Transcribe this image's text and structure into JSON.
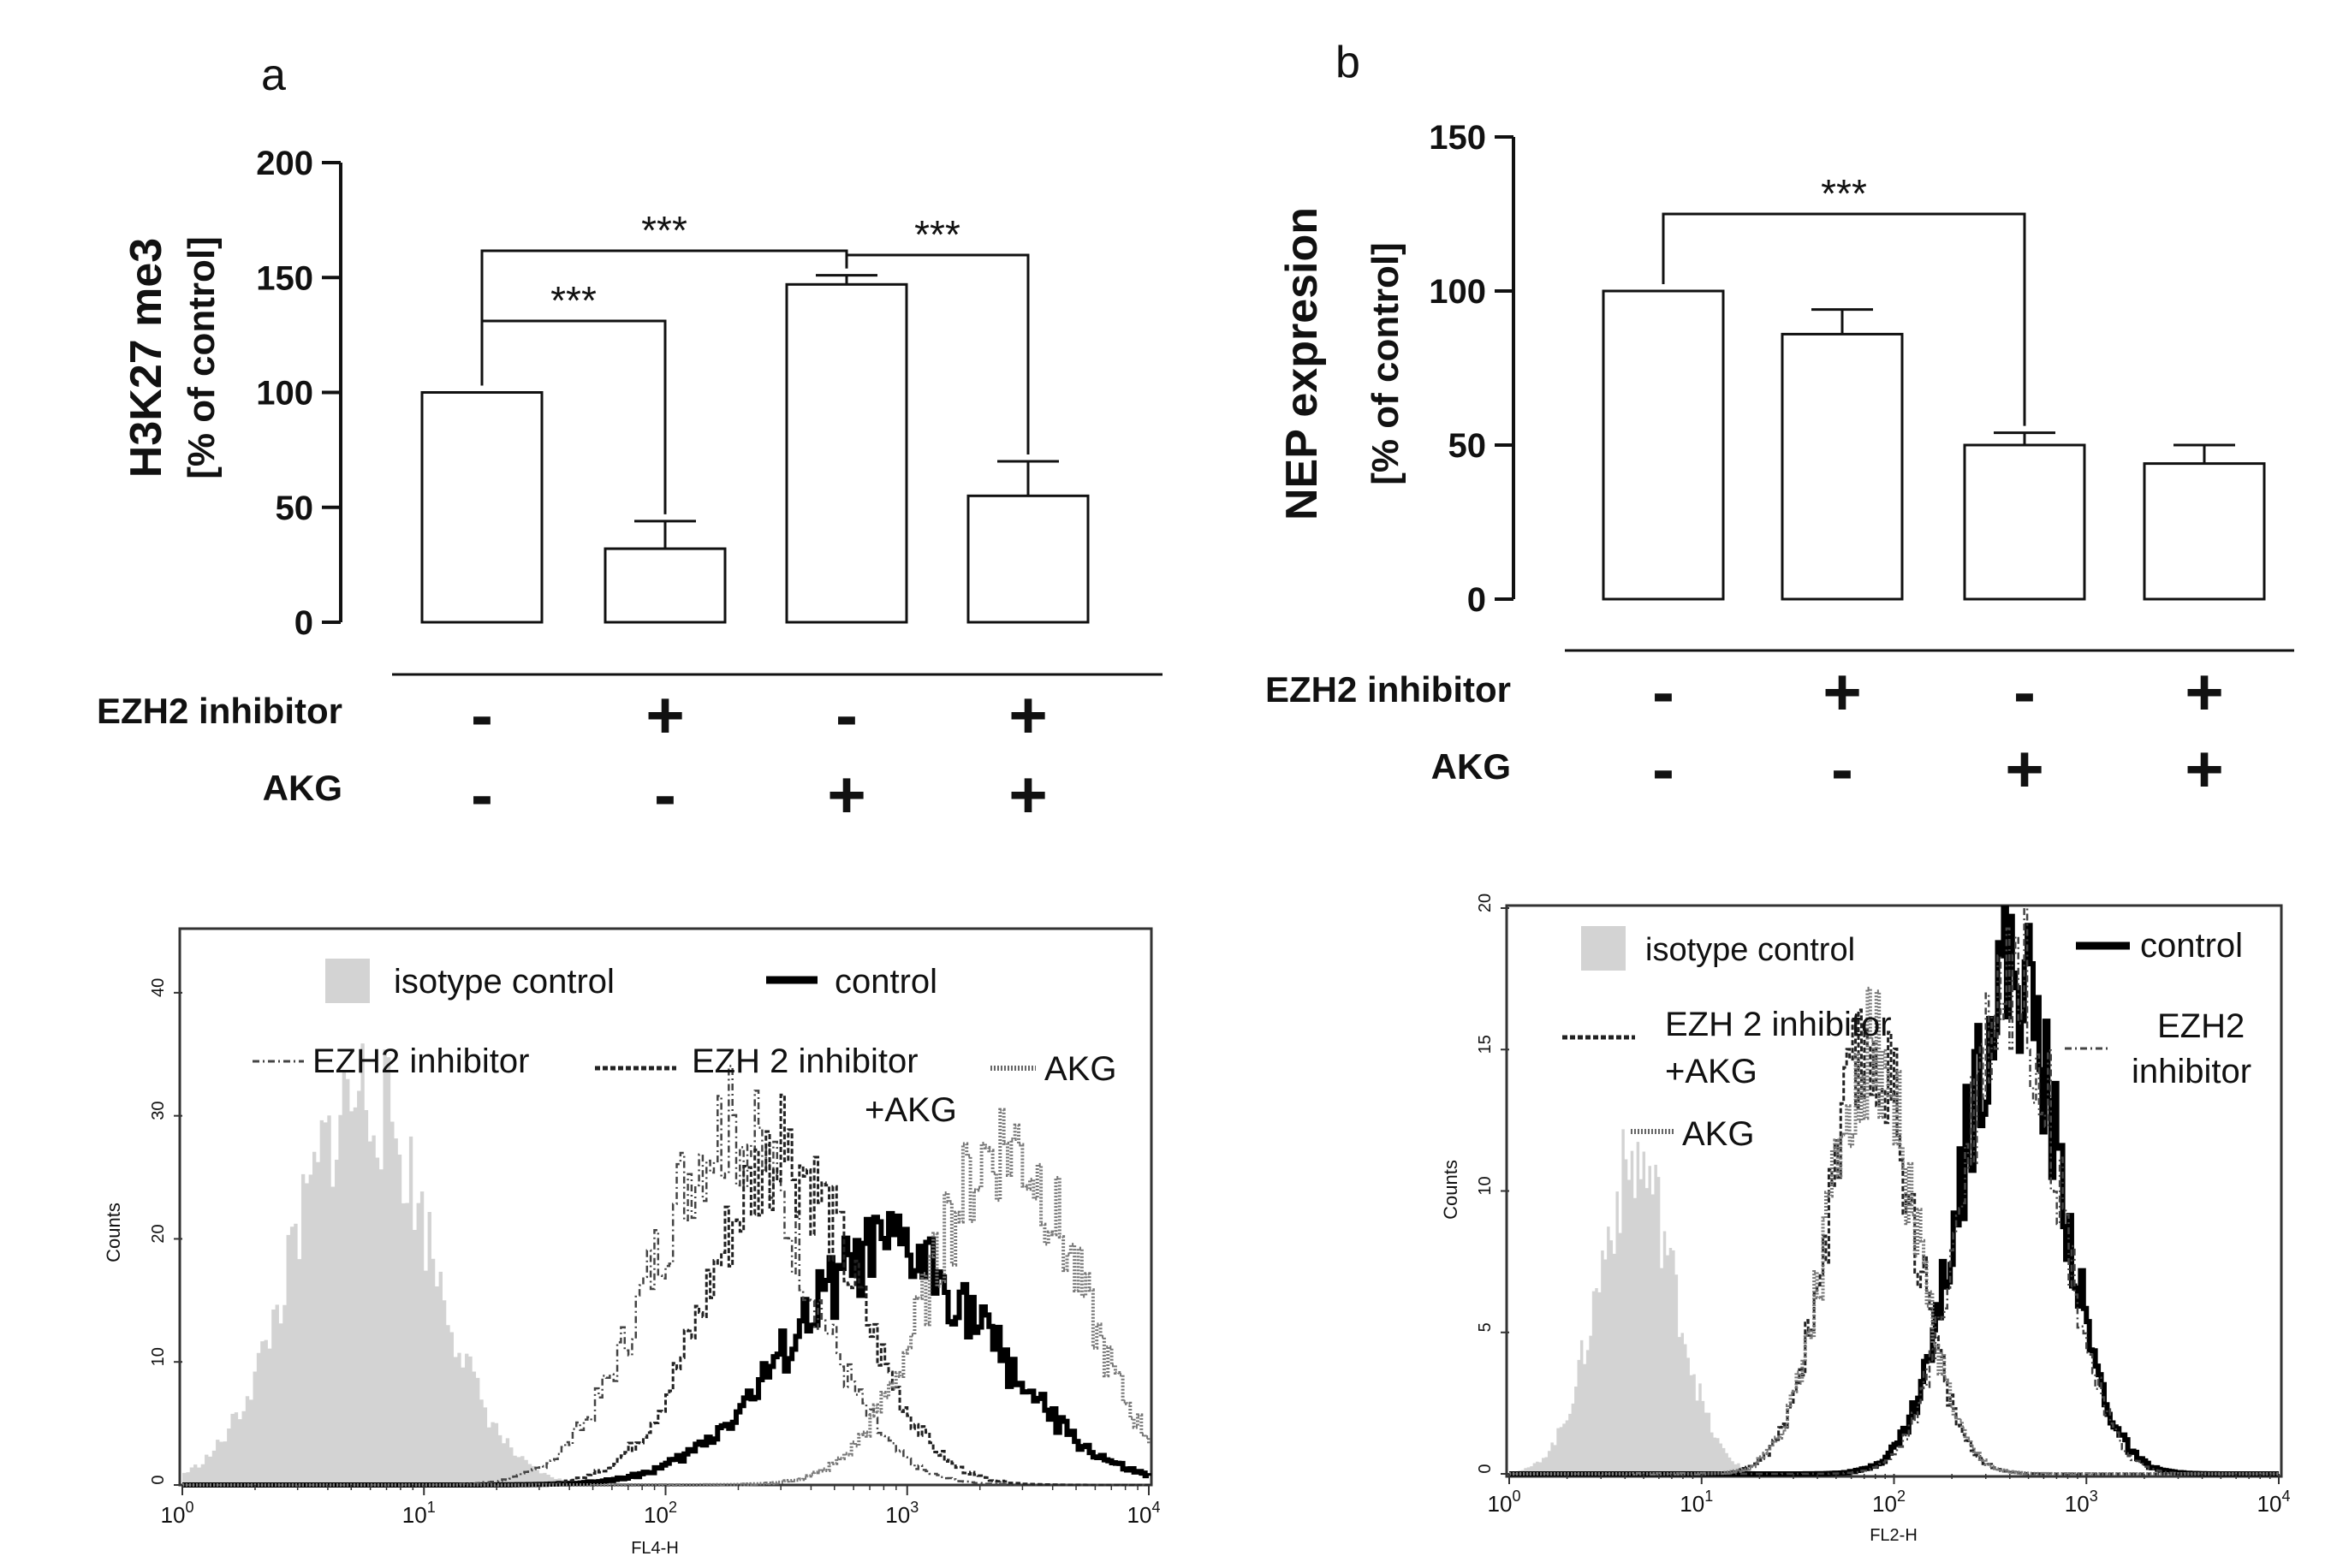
{
  "chart_data": [
    {
      "id": "a",
      "panel_label": "a",
      "type": "bar",
      "ylabel_line1": "H3K27 me3",
      "ylabel_line2": "[% of control]",
      "ylim": [
        0,
        200
      ],
      "yticks": [
        "0",
        "50",
        "100",
        "150",
        "200"
      ],
      "values": [
        100,
        32,
        147,
        55
      ],
      "errors": [
        0,
        12,
        4,
        15
      ],
      "conditions": [
        {
          "label": "EZH2 inhibitor",
          "values": [
            "-",
            "+",
            "-",
            "+"
          ]
        },
        {
          "label": "AKG",
          "values": [
            "-",
            "-",
            "+",
            "+"
          ]
        }
      ],
      "significance": [
        {
          "from": 0,
          "to": 1,
          "label": "***"
        },
        {
          "from": 0,
          "to": 2,
          "label": "***"
        },
        {
          "from": 2,
          "to": 3,
          "label": "***"
        }
      ]
    },
    {
      "id": "b",
      "panel_label": "b",
      "type": "bar",
      "ylabel_line1": "NEP expresion",
      "ylabel_line2": "[% of control]",
      "ylim": [
        0,
        150
      ],
      "yticks": [
        "0",
        "50",
        "100",
        "150"
      ],
      "values": [
        100,
        86,
        50,
        44
      ],
      "errors": [
        0,
        8,
        4,
        6
      ],
      "conditions": [
        {
          "label": "EZH2 inhibitor",
          "values": [
            "-",
            "+",
            "-",
            "+"
          ]
        },
        {
          "label": "AKG",
          "values": [
            "-",
            "-",
            "+",
            "+"
          ]
        }
      ],
      "significance": [
        {
          "from": 0,
          "to": 2,
          "label": "***"
        }
      ]
    },
    {
      "id": "c",
      "type": "area",
      "subtype": "flow-cytometry-histogram",
      "xscale": "log",
      "xlim": [
        1,
        10000
      ],
      "ylim": [
        0,
        45
      ],
      "xlabel": "FL4-H",
      "ylabel": "Counts",
      "xtick_base": "10",
      "xtick_exps": [
        "0",
        "1",
        "2",
        "3",
        "4"
      ],
      "yticks": [
        "0",
        "10",
        "20",
        "30",
        "40"
      ],
      "legend": {
        "isotype": "isotype control",
        "control": "control",
        "ezh2": "EZH2 inhibitor",
        "combo_line1": "EZH 2 inhibitor",
        "combo_line2": "+AKG",
        "akg": "AKG"
      },
      "series": [
        {
          "name": "isotype control",
          "peak_x": 5.5,
          "peak_y": 32,
          "width_decades": 0.28
        },
        {
          "name": "control",
          "peak_x": 850,
          "peak_y": 19,
          "width_decades": 0.42
        },
        {
          "name": "EZH2 inhibitor",
          "peak_x": 180,
          "peak_y": 29,
          "width_decades": 0.32
        },
        {
          "name": "EZH 2 inhibitor +AKG",
          "peak_x": 300,
          "peak_y": 27,
          "width_decades": 0.3
        },
        {
          "name": "AKG",
          "peak_x": 2500,
          "peak_y": 28,
          "width_decades": 0.3
        }
      ]
    },
    {
      "id": "d",
      "type": "area",
      "subtype": "flow-cytometry-histogram",
      "xscale": "log",
      "xlim": [
        1,
        10000
      ],
      "ylim": [
        0,
        20
      ],
      "xlabel": "FL2-H",
      "ylabel": "Counts",
      "xtick_base": "10",
      "xtick_exps": [
        "0",
        "1",
        "2",
        "3",
        "4"
      ],
      "yticks": [
        "0",
        "5",
        "10",
        "15",
        "20"
      ],
      "legend": {
        "isotype": "isotype control",
        "control": "control",
        "combo_line1": "EZH 2 inhibitor",
        "combo_line2": "+AKG",
        "akg": "AKG",
        "ezh2_line1": "EZH2",
        "ezh2_line2": "inhibitor"
      },
      "series": [
        {
          "name": "isotype control",
          "peak_x": 4.5,
          "peak_y": 11,
          "width_decades": 0.2
        },
        {
          "name": "control",
          "peak_x": 400,
          "peak_y": 18,
          "width_decades": 0.25
        },
        {
          "name": "EZH2 inhibitor",
          "peak_x": 400,
          "peak_y": 18,
          "width_decades": 0.24
        },
        {
          "name": "EZH 2 inhibitor +AKG",
          "peak_x": 75,
          "peak_y": 15,
          "width_decades": 0.22
        },
        {
          "name": "AKG",
          "peak_x": 75,
          "peak_y": 15,
          "width_decades": 0.22
        }
      ]
    }
  ]
}
